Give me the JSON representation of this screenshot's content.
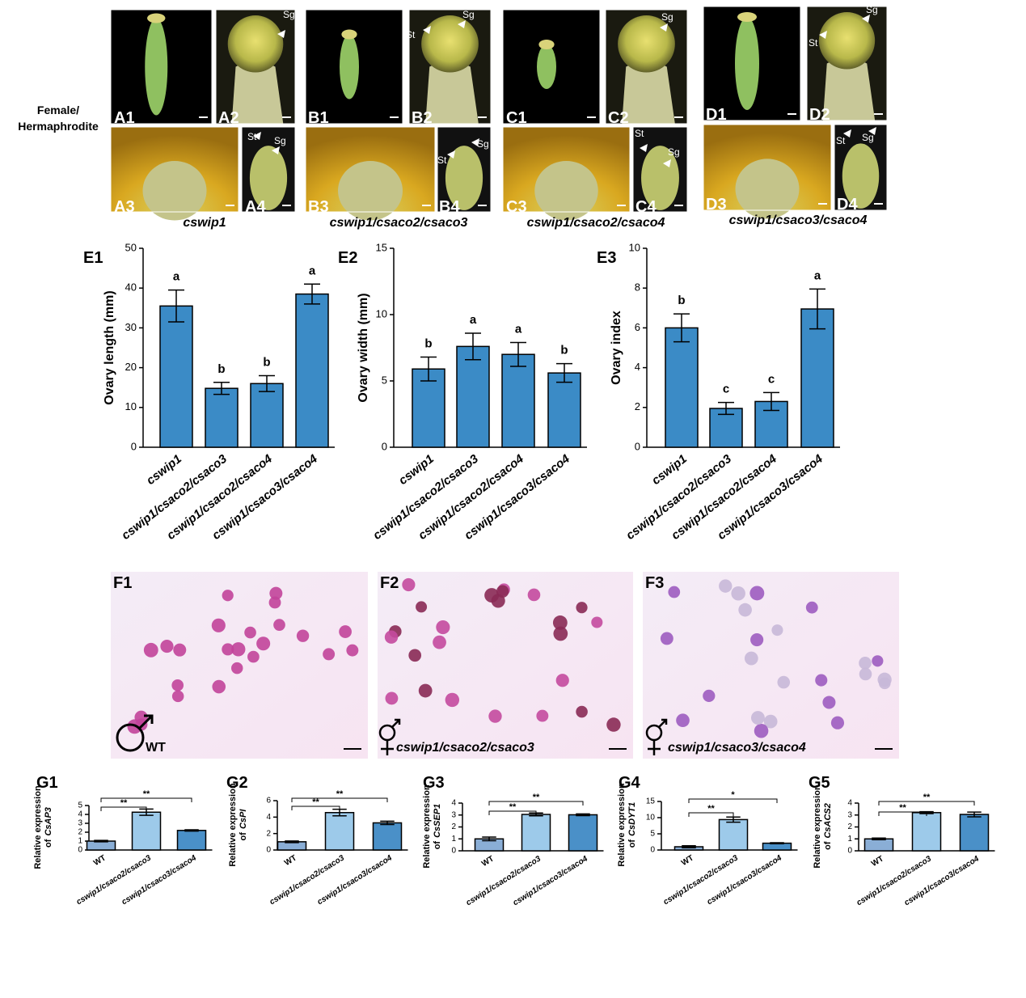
{
  "figure": {
    "row_label": [
      "Female/",
      "Hermaphrodite"
    ],
    "photo_panels": [
      "A1",
      "A2",
      "A3",
      "A4",
      "B1",
      "B2",
      "B3",
      "B4",
      "C1",
      "C2",
      "C3",
      "C4",
      "D1",
      "D2",
      "D3",
      "D4"
    ],
    "genotypes": [
      "cswip1",
      "cswip1/csaco2/csaco3",
      "cswip1/csaco2/csaco4",
      "cswip1/csaco3/csaco4"
    ],
    "markers": [
      "Sg",
      "St",
      "Sg",
      "Sg",
      "St",
      "Sg",
      "St",
      "Sg",
      "St",
      "Sg",
      "Sg",
      "St",
      "St",
      "Sg"
    ],
    "pollen_panels": [
      {
        "label": "F1",
        "caption": "WT"
      },
      {
        "label": "F2",
        "caption": "cswip1/csaco2/csaco3"
      },
      {
        "label": "F3",
        "caption": "cswip1/csaco3/csaco4"
      }
    ]
  },
  "chart_data": [
    {
      "type": "bar",
      "panel": "E1",
      "ylabel": "Ovary length (mm)",
      "categories": [
        "cswip1",
        "cswip1/csaco2/csaco3",
        "cswip1/csaco2/csaco4",
        "cswip1/csaco3/csaco4"
      ],
      "values": [
        35.5,
        14.8,
        16.0,
        38.5
      ],
      "errors": [
        4.0,
        1.5,
        2.0,
        2.5
      ],
      "letters": [
        "a",
        "b",
        "b",
        "a"
      ],
      "color": "#3b8bc6",
      "ylim": [
        0,
        50
      ],
      "yticks": [
        0,
        10,
        20,
        30,
        40,
        50
      ]
    },
    {
      "type": "bar",
      "panel": "E2",
      "ylabel": "Ovary width (mm)",
      "categories": [
        "cswip1",
        "cswip1/csaco2/csaco3",
        "cswip1/csaco2/csaco4",
        "cswip1/csaco3/csaco4"
      ],
      "values": [
        5.9,
        7.6,
        7.0,
        5.6
      ],
      "errors": [
        0.9,
        1.0,
        0.9,
        0.7
      ],
      "letters": [
        "b",
        "a",
        "a",
        "b"
      ],
      "color": "#3b8bc6",
      "ylim": [
        0,
        15
      ],
      "yticks": [
        0,
        5,
        10,
        15
      ]
    },
    {
      "type": "bar",
      "panel": "E3",
      "ylabel": "Ovary index",
      "categories": [
        "cswip1",
        "cswip1/csaco2/csaco3",
        "cswip1/csaco2/csaco4",
        "cswip1/csaco3/csaco4"
      ],
      "values": [
        6.0,
        1.95,
        2.3,
        6.95
      ],
      "errors": [
        0.7,
        0.3,
        0.45,
        1.0
      ],
      "letters": [
        "b",
        "c",
        "c",
        "a"
      ],
      "color": "#3b8bc6",
      "ylim": [
        0,
        10
      ],
      "yticks": [
        0,
        2,
        4,
        6,
        8,
        10
      ]
    },
    {
      "type": "bar",
      "panel": "G1",
      "ylabel": [
        "Relative expression",
        "of",
        "CsAP3"
      ],
      "categories": [
        "WT",
        "cswip1/csaco2/csaco3",
        "cswip1/csaco3/csaco4"
      ],
      "values": [
        1.0,
        4.25,
        2.2
      ],
      "errors": [
        0.08,
        0.35,
        0.07
      ],
      "significance": [
        "**",
        "**"
      ],
      "colors": [
        "#8aaed6",
        "#9dcaea",
        "#4a90c8"
      ],
      "ylim": [
        0,
        5
      ],
      "yticks": [
        0,
        1,
        2,
        3,
        4,
        5
      ]
    },
    {
      "type": "bar",
      "panel": "G2",
      "ylabel": [
        "Relative expression",
        "of",
        "CsPI"
      ],
      "categories": [
        "WT",
        "cswip1/csaco2/csaco3",
        "cswip1/csaco3/csaco4"
      ],
      "values": [
        1.0,
        4.55,
        3.3
      ],
      "errors": [
        0.1,
        0.4,
        0.2
      ],
      "significance": [
        "**",
        "**"
      ],
      "colors": [
        "#8aaed6",
        "#9dcaea",
        "#4a90c8"
      ],
      "ylim": [
        0,
        6
      ],
      "yticks": [
        0,
        2,
        4,
        6
      ]
    },
    {
      "type": "bar",
      "panel": "G3",
      "ylabel": [
        "Relative expression",
        "of",
        "CsSEP1"
      ],
      "categories": [
        "WT",
        "cswip1/csaco2/csaco3",
        "cswip1/csaco3/csaco4"
      ],
      "values": [
        1.0,
        3.05,
        3.02
      ],
      "errors": [
        0.15,
        0.12,
        0.07
      ],
      "significance": [
        "**",
        "**"
      ],
      "colors": [
        "#8aaed6",
        "#9dcaea",
        "#4a90c8"
      ],
      "ylim": [
        0,
        4
      ],
      "yticks": [
        0,
        1,
        2,
        3,
        4
      ]
    },
    {
      "type": "bar",
      "panel": "G4",
      "ylabel": [
        "Relative expression",
        "of",
        "CsDYT1"
      ],
      "categories": [
        "WT",
        "cswip1/csaco2/csaco3",
        "cswip1/csaco3/csaco4"
      ],
      "values": [
        1.0,
        9.4,
        2.1
      ],
      "errors": [
        0.3,
        0.8,
        0.15
      ],
      "significance": [
        "**",
        "*"
      ],
      "colors": [
        "#8aaed6",
        "#9dcaea",
        "#4a90c8"
      ],
      "ylim": [
        0,
        15
      ],
      "yticks": [
        0,
        5,
        10,
        15
      ]
    },
    {
      "type": "bar",
      "panel": "G5",
      "ylabel": [
        "Relative expression",
        "of",
        "CsACS2"
      ],
      "categories": [
        "WT",
        "cswip1/csaco2/csaco3",
        "cswip1/csaco3/csaco4"
      ],
      "values": [
        1.0,
        3.2,
        3.05
      ],
      "errors": [
        0.07,
        0.08,
        0.2
      ],
      "significance": [
        "**",
        "**"
      ],
      "colors": [
        "#8aaed6",
        "#9dcaea",
        "#4a90c8"
      ],
      "ylim": [
        0,
        4
      ],
      "yticks": [
        0,
        1,
        2,
        3,
        4
      ]
    }
  ]
}
